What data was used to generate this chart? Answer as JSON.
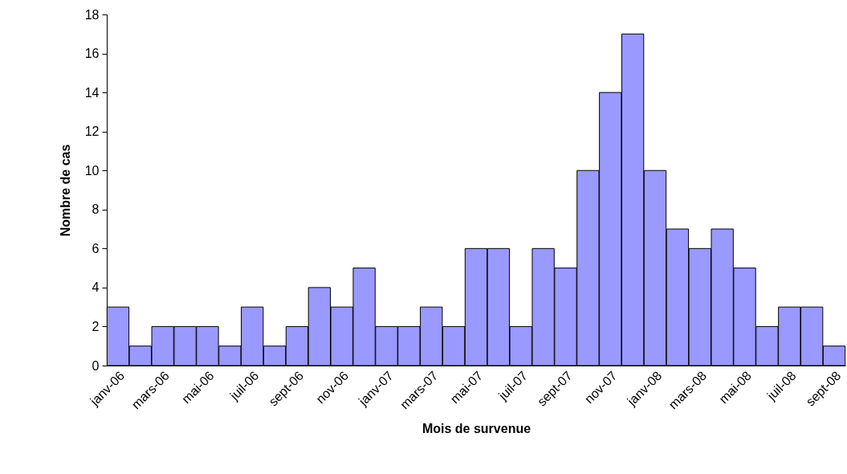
{
  "chart_data": {
    "type": "bar",
    "xlabel": "Mois de survenue",
    "ylabel": "Nombre de cas",
    "categories": [
      "janv-06",
      null,
      "mars-06",
      null,
      "mai-06",
      null,
      "juil-06",
      null,
      "sept-06",
      null,
      "nov-06",
      null,
      "janv-07",
      null,
      "mars-07",
      null,
      "mai-07",
      null,
      "juil-07",
      null,
      "sept-07",
      null,
      "nov-07",
      null,
      "janv-08",
      null,
      "mars-08",
      null,
      "mai-08",
      null,
      "juil-08",
      null,
      "sept-08"
    ],
    "values": [
      3,
      1,
      2,
      2,
      2,
      1,
      3,
      1,
      2,
      4,
      3,
      5,
      2,
      2,
      3,
      2,
      6,
      6,
      2,
      6,
      5,
      10,
      14,
      17,
      10,
      7,
      6,
      7,
      5,
      2,
      3,
      3,
      1
    ],
    "color": "#9999ff",
    "ylim": [
      0,
      18
    ],
    "yticks": [
      0,
      2,
      4,
      6,
      8,
      10,
      12,
      14,
      16,
      18
    ]
  }
}
